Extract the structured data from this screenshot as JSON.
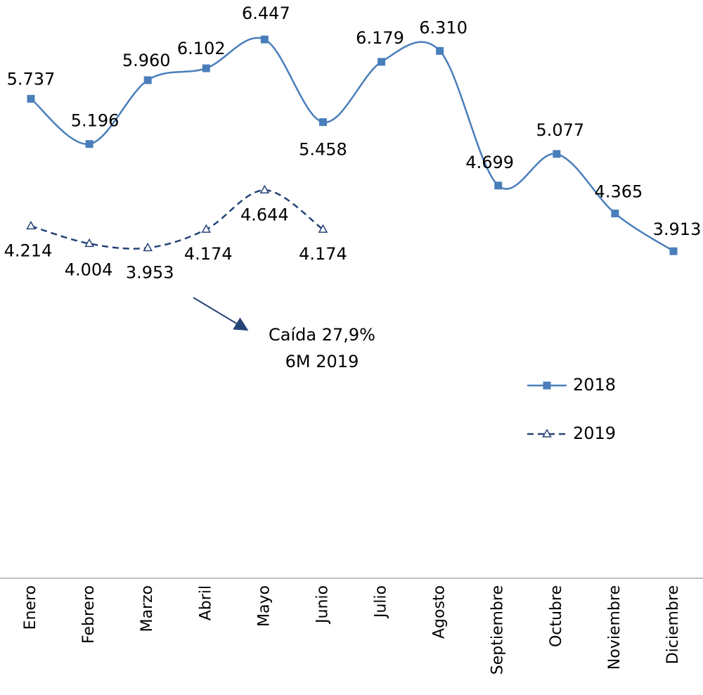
{
  "chart_data": {
    "type": "line",
    "categories": [
      "Enero",
      "Febrero",
      "Marzo",
      "Abril",
      "Mayo",
      "Junio",
      "Julio",
      "Agosto",
      "Septiembre",
      "Octubre",
      "Noviembre",
      "Diciembre"
    ],
    "series": [
      {
        "name": "2018",
        "color": "#4a7ebb",
        "dashed": false,
        "marker": "square",
        "values": [
          5737,
          5196,
          5960,
          6102,
          6447,
          5458,
          6179,
          6310,
          4699,
          5077,
          4365,
          3913
        ],
        "value_labels": [
          "5.737",
          "5.196",
          "5.960",
          "6.102",
          "6.447",
          "5.458",
          "6.179",
          "6.310",
          "4.699",
          "5.077",
          "4.365",
          "3.913"
        ]
      },
      {
        "name": "2019",
        "color": "#264478",
        "dashed": true,
        "marker": "triangle",
        "values": [
          4214,
          4004,
          3953,
          4174,
          4644,
          4174,
          null,
          null,
          null,
          null,
          null,
          null
        ],
        "value_labels": [
          "4.214",
          "4.004",
          "3.953",
          "4.174",
          "4.644",
          "4.174",
          null,
          null,
          null,
          null,
          null,
          null
        ]
      }
    ],
    "annotation": [
      "Caída 27,9%",
      "6M 2019"
    ],
    "ylim": [
      0,
      7000
    ],
    "smooth": true,
    "legend": "right"
  }
}
